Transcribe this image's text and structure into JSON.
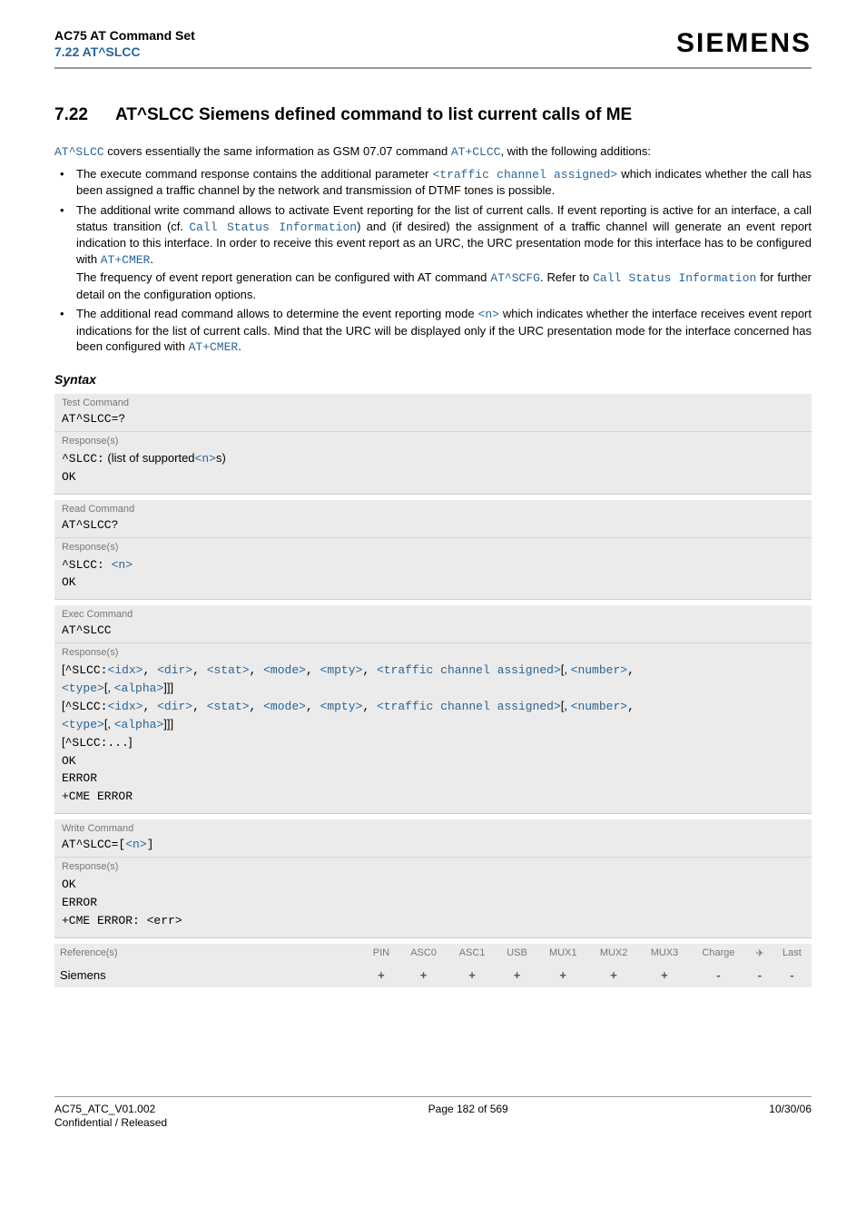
{
  "header": {
    "title": "AC75 AT Command Set",
    "subtitle": "7.22 AT^SLCC",
    "logo": "SIEMENS"
  },
  "section": {
    "number": "7.22",
    "title": "AT^SLCC   Siemens defined command to list current calls of ME"
  },
  "intro": {
    "p1a": "AT^SLCC",
    "p1b": " covers essentially the same information as GSM 07.07 command ",
    "p1c": "AT+CLCC",
    "p1d": ", with the following additions:"
  },
  "bullets": {
    "b1a": "The execute command response contains the additional parameter ",
    "b1b": "<traffic channel assigned>",
    "b1c": " which indicates whether the call has been assigned a traffic channel by the network and transmission of DTMF tones is possible.",
    "b2a": "The additional write command allows to activate Event reporting for the list of current calls. If event reporting is active for an interface, a call status transition (cf. ",
    "b2b": "Call Status Information",
    "b2c": ") and (if desired) the assignment of a traffic channel will generate an event report indication to this interface. In order to receive this event report as an URC, the URC presentation mode for this interface has to be configured with ",
    "b2d": "AT+CMER",
    "b2e": ".",
    "b2f": "The frequency of event report generation can be configured with AT command ",
    "b2g": "AT^SCFG",
    "b2h": ". Refer to ",
    "b2i": "Call Status Information",
    "b2j": " for further detail on the configuration options.",
    "b3a": "The additional read command allows to determine the event reporting mode ",
    "b3b": "<n>",
    "b3c": " which indicates whether the interface receives event report indications for the list of current calls. Mind that the URC will be displayed only if the URC presentation mode for the interface concerned has been configured with ",
    "b3d": "AT+CMER",
    "b3e": "."
  },
  "syntax_label": "Syntax",
  "test": {
    "label": "Test Command",
    "cmd": "AT^SLCC=?",
    "resp_label": "Response(s)",
    "r1a": "^SLCC:",
    "r1b": "  (list of supported",
    "r1c": "<n>",
    "r1d": "s)",
    "r2": "OK"
  },
  "read": {
    "label": "Read Command",
    "cmd": "AT^SLCC?",
    "resp_label": "Response(s)",
    "r1a": "^SLCC: ",
    "r1b": "<n>",
    "r2": "OK"
  },
  "exec": {
    "label": "Exec Command",
    "cmd": "AT^SLCC",
    "resp_label": "Response(s)",
    "line1": {
      "pre": "[",
      "c": "^SLCC:",
      "idx": "<idx>",
      "dir": "<dir>",
      "stat": "<stat>",
      "mode": "<mode>",
      "mpty": "<mpty>",
      "tca": "<traffic channel assigned>",
      "num": "<number>",
      "type": "<type>",
      "alpha": "<alpha>",
      "close": "]]]"
    },
    "line3": {
      "pre": "[",
      "c": "^SLCC:...",
      "close": "]"
    },
    "ok": "OK",
    "err": "ERROR",
    "cme": "+CME ERROR"
  },
  "write": {
    "label": "Write Command",
    "cmd_a": "AT^SLCC=",
    "cmd_b": "[",
    "cmd_c": "<n>",
    "cmd_d": "]",
    "resp_label": "Response(s)",
    "ok": "OK",
    "err": "ERROR",
    "cme": "+CME ERROR: ",
    "cme_err": "<err>"
  },
  "ref": {
    "label": "Reference(s)",
    "cols": [
      "PIN",
      "ASC0",
      "ASC1",
      "USB",
      "MUX1",
      "MUX2",
      "MUX3",
      "Charge",
      "✈",
      "Last"
    ],
    "vendor": "Siemens",
    "vals": [
      "+",
      "+",
      "+",
      "+",
      "+",
      "+",
      "+",
      "-",
      "-",
      "-"
    ]
  },
  "footer": {
    "left1": "AC75_ATC_V01.002",
    "left2": "Confidential / Released",
    "center": "Page 182 of 569",
    "right": "10/30/06"
  }
}
